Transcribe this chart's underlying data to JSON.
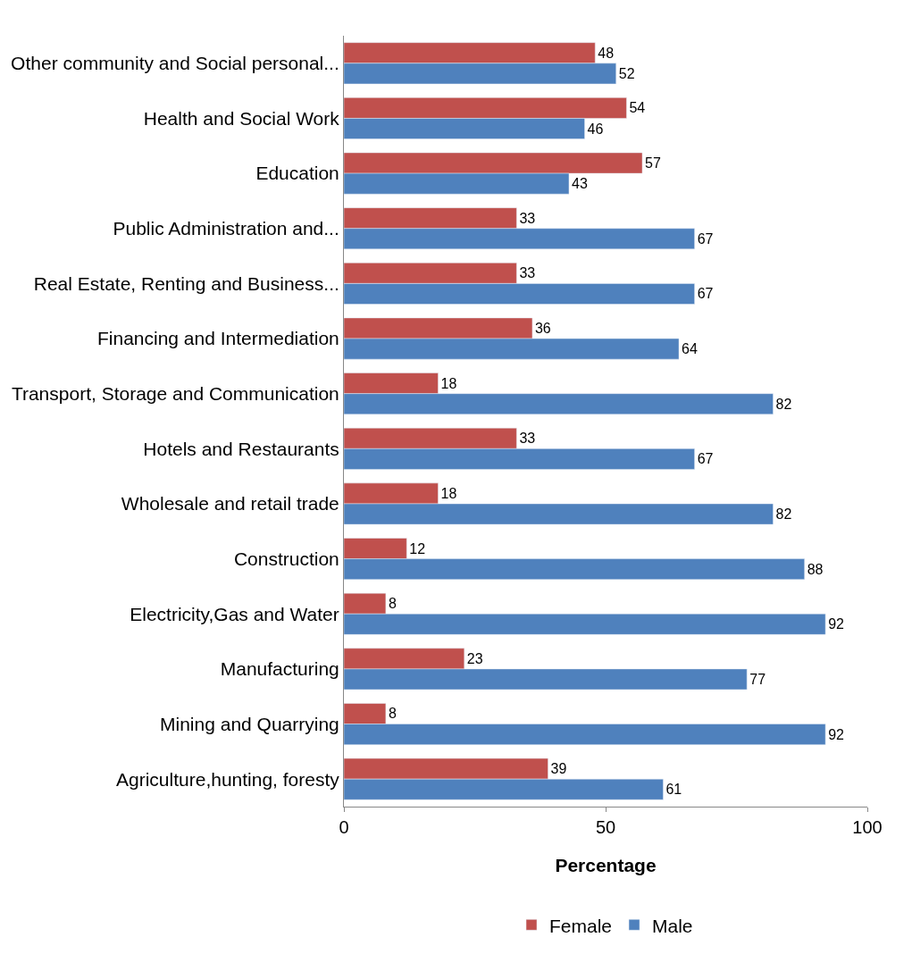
{
  "chart_data": {
    "type": "bar",
    "orientation": "horizontal",
    "xlabel": "Percentage",
    "categories": [
      "Other community and Social personal...",
      "Health and Social Work",
      "Education",
      "Public Administration and...",
      "Real Estate, Renting and Business...",
      "Financing and Intermediation",
      "Transport, Storage and Communication",
      "Hotels and Restaurants",
      "Wholesale and retail trade",
      "Construction",
      "Electricity,Gas and Water",
      "Manufacturing",
      "Mining and Quarrying",
      "Agriculture,hunting, foresty"
    ],
    "series": [
      {
        "name": "Female",
        "color": "#c0504d",
        "values": [
          48,
          54,
          57,
          33,
          33,
          36,
          18,
          33,
          18,
          12,
          8,
          23,
          8,
          39
        ]
      },
      {
        "name": "Male",
        "color": "#4f81bd",
        "values": [
          52,
          46,
          43,
          67,
          67,
          64,
          82,
          67,
          82,
          88,
          92,
          77,
          92,
          61
        ]
      }
    ],
    "xlim": [
      0,
      100
    ],
    "xticks": [
      0,
      50,
      100
    ],
    "data_labels": true,
    "grid": false,
    "legend": "bottom"
  }
}
